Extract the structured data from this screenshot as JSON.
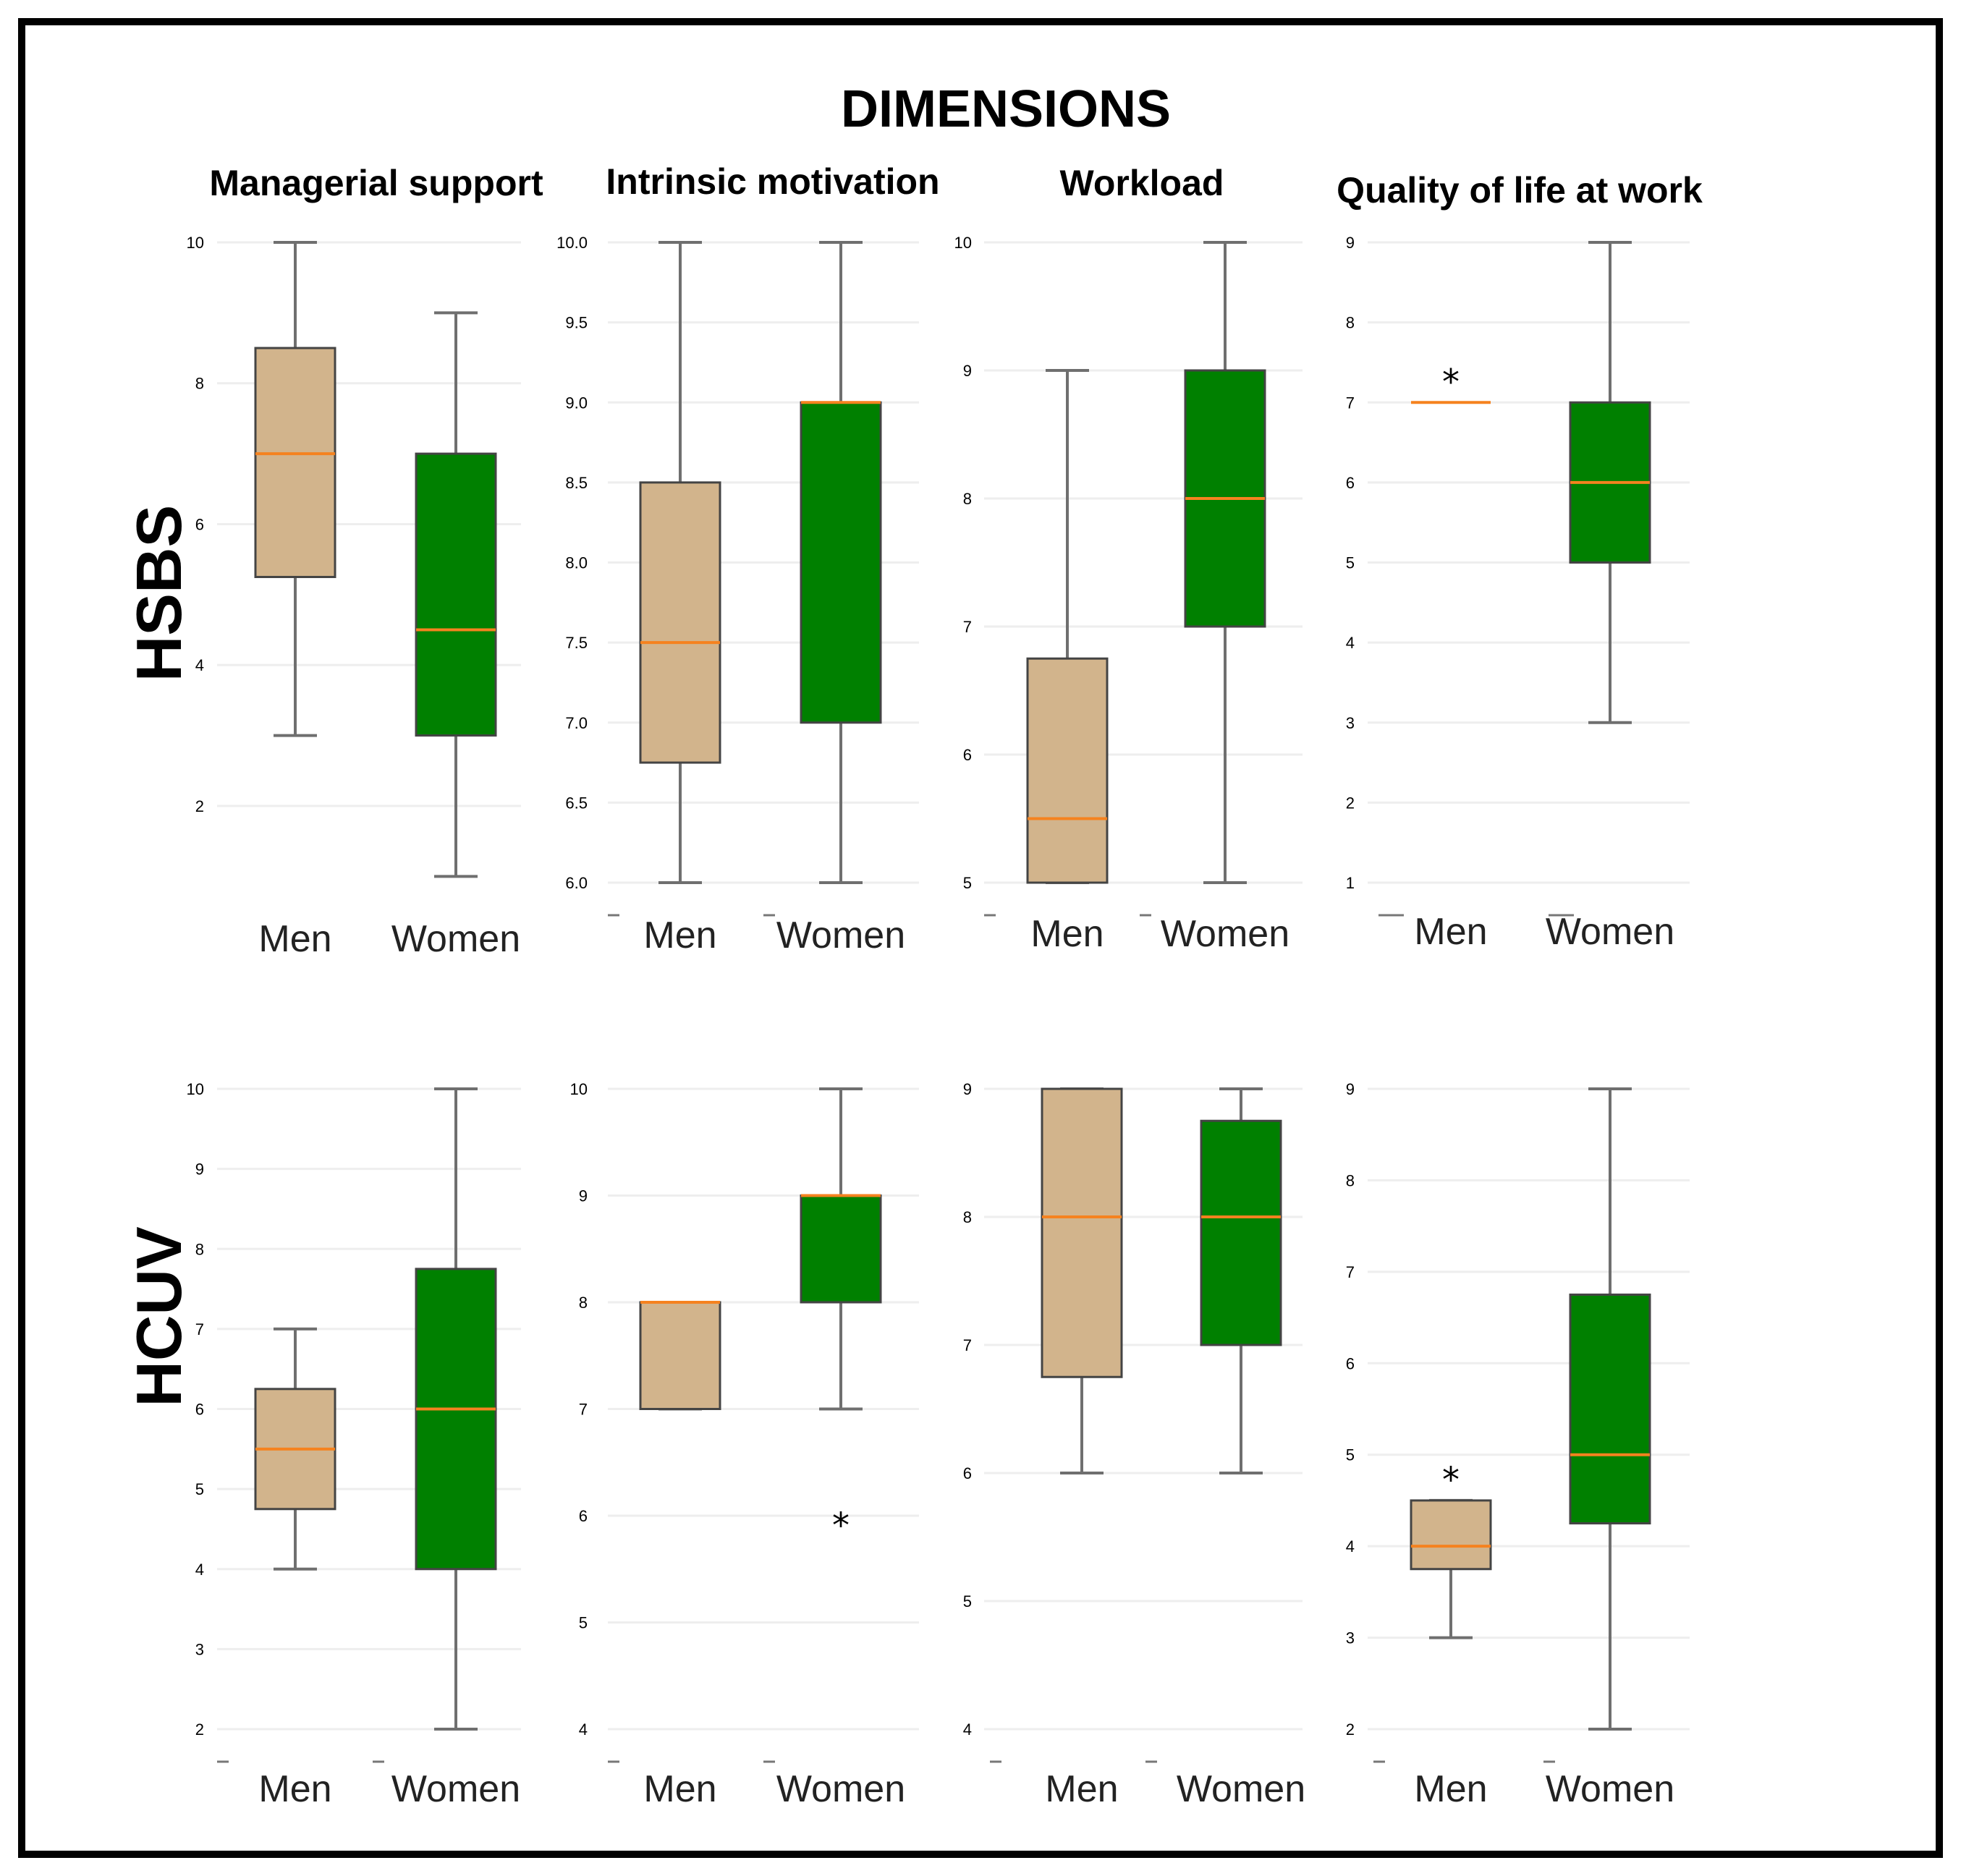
{
  "title": "DIMENSIONS",
  "colors": {
    "men": "#d2b48c",
    "women": "#008000",
    "median": "#f5821f",
    "whisker": "#6f6f6f"
  },
  "chart_data": [
    {
      "type": "box",
      "row": "HSBS",
      "dimension": "Managerial support",
      "ylim": [
        0.5,
        10
      ],
      "ticks": [
        2,
        4,
        6,
        8,
        10
      ],
      "tick_labels": [
        "2",
        "4",
        "6",
        "8",
        "10"
      ],
      "categories": [
        "Men",
        "Women"
      ],
      "series": [
        {
          "name": "Men",
          "min": 3,
          "q1": 5.25,
          "median": 7,
          "q3": 8.5,
          "max": 10,
          "outliers": [],
          "significant": false
        },
        {
          "name": "Women",
          "min": 1,
          "q1": 3,
          "median": 4.5,
          "q3": 7,
          "max": 9,
          "outliers": [],
          "significant": false
        }
      ]
    },
    {
      "type": "box",
      "row": "HSBS",
      "dimension": "Intrinsic motivation",
      "ylim": [
        6.0,
        10.0
      ],
      "ticks": [
        6.0,
        6.5,
        7.0,
        7.5,
        8.0,
        8.5,
        9.0,
        9.5,
        10.0
      ],
      "tick_labels": [
        "6.0",
        "6.5",
        "7.0",
        "7.5",
        "8.0",
        "8.5",
        "9.0",
        "9.5",
        "10.0"
      ],
      "categories": [
        "Men",
        "Women"
      ],
      "series": [
        {
          "name": "Men",
          "min": 6,
          "q1": 6.75,
          "median": 7.5,
          "q3": 8.5,
          "max": 10,
          "outliers": [],
          "significant": false
        },
        {
          "name": "Women",
          "min": 6,
          "q1": 7,
          "median": 9,
          "q3": 9,
          "max": 10,
          "outliers": [],
          "significant": false
        }
      ]
    },
    {
      "type": "box",
      "row": "HSBS",
      "dimension": "Workload",
      "ylim": [
        5,
        10
      ],
      "ticks": [
        5,
        6,
        7,
        8,
        9,
        10
      ],
      "tick_labels": [
        "5",
        "6",
        "7",
        "8",
        "9",
        "10"
      ],
      "categories": [
        "Men",
        "Women"
      ],
      "series": [
        {
          "name": "Men",
          "min": 5,
          "q1": 5,
          "median": 5.5,
          "q3": 6.75,
          "max": 9,
          "outliers": [],
          "significant": false
        },
        {
          "name": "Women",
          "min": 5,
          "q1": 7,
          "median": 8,
          "q3": 9,
          "max": 10,
          "outliers": [],
          "significant": false
        }
      ]
    },
    {
      "type": "box",
      "row": "HSBS",
      "dimension": "Quality of life at work",
      "ylim": [
        1,
        9
      ],
      "ticks": [
        1,
        2,
        3,
        4,
        5,
        6,
        7,
        8,
        9
      ],
      "tick_labels": [
        "1",
        "2",
        "3",
        "4",
        "5",
        "6",
        "7",
        "8",
        "9"
      ],
      "categories": [
        "Men",
        "Women"
      ],
      "series": [
        {
          "name": "Men",
          "min": 7,
          "q1": 7,
          "median": 7,
          "q3": 7,
          "max": 7,
          "outliers": [],
          "significant": true
        },
        {
          "name": "Women",
          "min": 3,
          "q1": 5,
          "median": 6,
          "q3": 7,
          "max": 9,
          "outliers": [],
          "significant": false
        }
      ]
    },
    {
      "type": "box",
      "row": "HCUV",
      "dimension": "Managerial support",
      "ylim": [
        2,
        10
      ],
      "ticks": [
        2,
        3,
        4,
        5,
        6,
        7,
        8,
        9,
        10
      ],
      "tick_labels": [
        "2",
        "3",
        "4",
        "5",
        "6",
        "7",
        "8",
        "9",
        "10"
      ],
      "categories": [
        "Men",
        "Women"
      ],
      "series": [
        {
          "name": "Men",
          "min": 4,
          "q1": 4.75,
          "median": 5.5,
          "q3": 6.25,
          "max": 7,
          "outliers": [],
          "significant": false
        },
        {
          "name": "Women",
          "min": 2,
          "q1": 4,
          "median": 6,
          "q3": 7.75,
          "max": 10,
          "outliers": [],
          "significant": false
        }
      ]
    },
    {
      "type": "box",
      "row": "HCUV",
      "dimension": "Intrinsic motivation",
      "ylim": [
        4,
        10
      ],
      "ticks": [
        4,
        5,
        6,
        7,
        8,
        9,
        10
      ],
      "tick_labels": [
        "4",
        "5",
        "6",
        "7",
        "8",
        "9",
        "10"
      ],
      "categories": [
        "Men",
        "Women"
      ],
      "series": [
        {
          "name": "Men",
          "min": 7,
          "q1": 7,
          "median": 8,
          "q3": 8,
          "max": 8,
          "outliers": [],
          "significant": false
        },
        {
          "name": "Women",
          "min": 7,
          "q1": 8,
          "median": 9,
          "q3": 9,
          "max": 10,
          "outliers": [
            6
          ],
          "significant": false
        }
      ]
    },
    {
      "type": "box",
      "row": "HCUV",
      "dimension": "Workload",
      "ylim": [
        4,
        9
      ],
      "ticks": [
        4,
        5,
        6,
        7,
        8,
        9
      ],
      "tick_labels": [
        "4",
        "5",
        "6",
        "7",
        "8",
        "9"
      ],
      "categories": [
        "Men",
        "Women"
      ],
      "series": [
        {
          "name": "Men",
          "min": 6,
          "q1": 6.75,
          "median": 8,
          "q3": 9,
          "max": 9,
          "outliers": [],
          "significant": false
        },
        {
          "name": "Women",
          "min": 6,
          "q1": 7,
          "median": 8,
          "q3": 8.75,
          "max": 9,
          "outliers": [],
          "significant": false
        }
      ]
    },
    {
      "type": "box",
      "row": "HCUV",
      "dimension": "Quality of life at work",
      "ylim": [
        2,
        9
      ],
      "ticks": [
        2,
        3,
        4,
        5,
        6,
        7,
        8,
        9
      ],
      "tick_labels": [
        "2",
        "3",
        "4",
        "5",
        "6",
        "7",
        "8",
        "9"
      ],
      "categories": [
        "Men",
        "Women"
      ],
      "series": [
        {
          "name": "Men",
          "min": 3,
          "q1": 3.75,
          "median": 4,
          "q3": 4.5,
          "max": 4.5,
          "outliers": [],
          "significant": true
        },
        {
          "name": "Women",
          "min": 2,
          "q1": 4.25,
          "median": 5,
          "q3": 6.75,
          "max": 9,
          "outliers": [],
          "significant": false
        }
      ]
    }
  ]
}
